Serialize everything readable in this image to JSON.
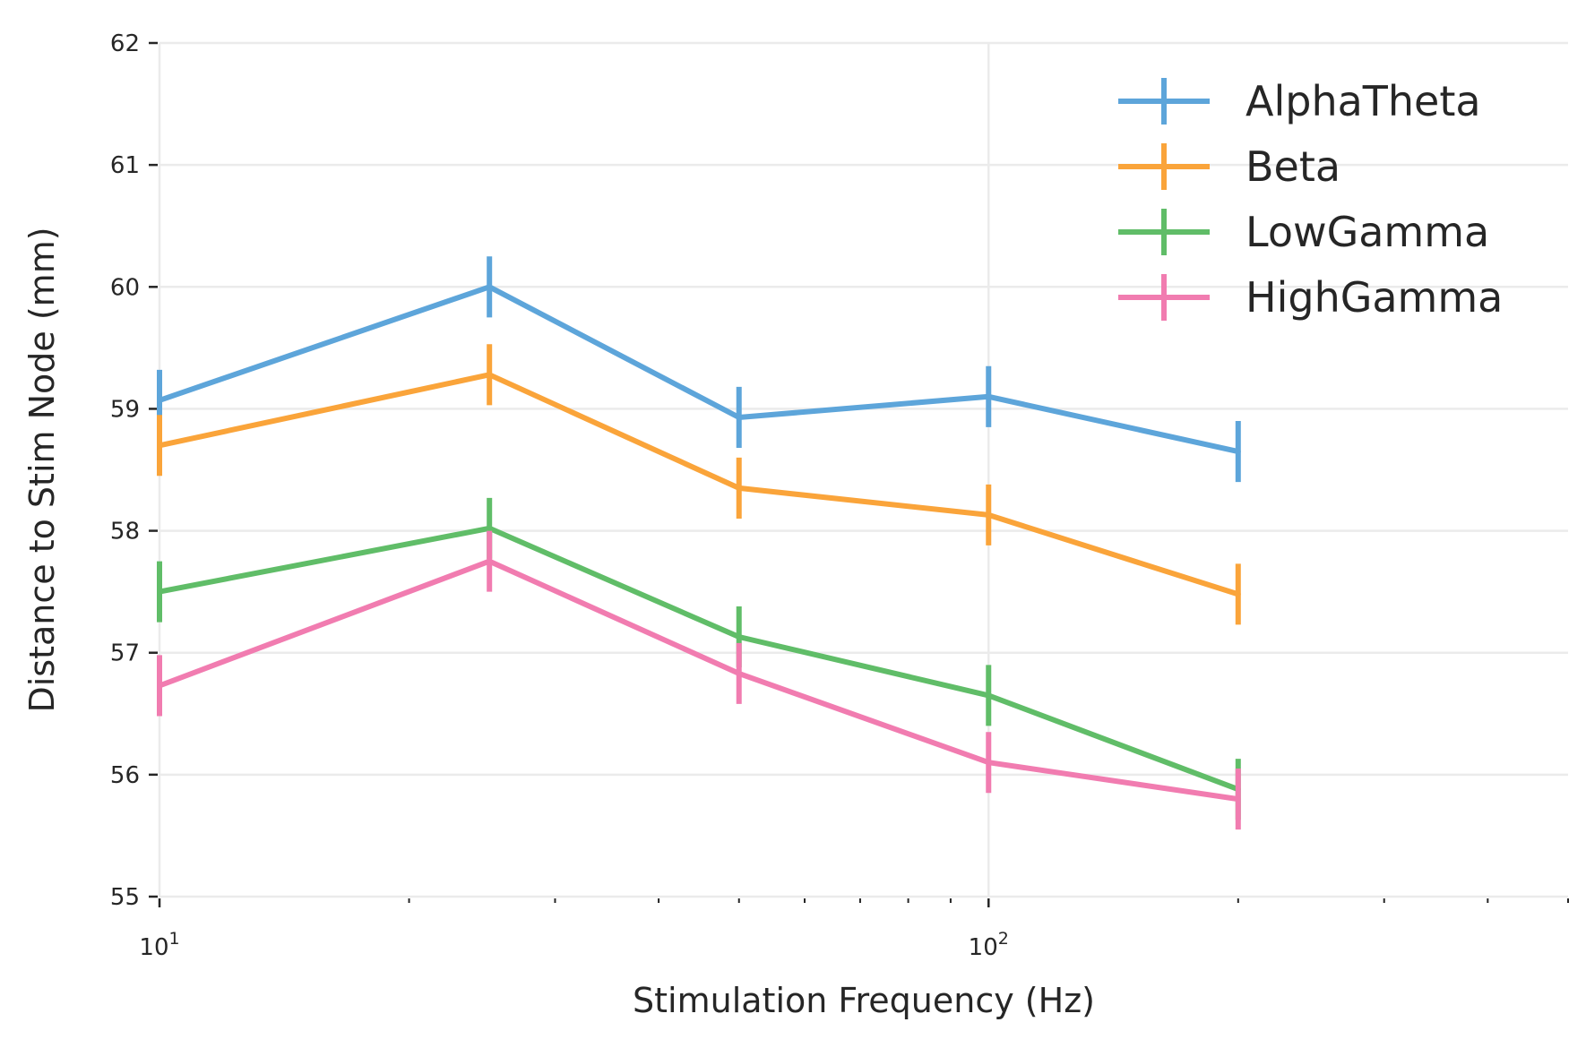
{
  "chart_data": {
    "type": "line",
    "xlabel": "Stimulation Frequency (Hz)",
    "ylabel": "Distance to Stim Node (mm)",
    "xscale": "log",
    "xlim": [
      10,
      500
    ],
    "ylim": [
      55,
      62
    ],
    "x_ticks": [
      {
        "value": 10,
        "base": "10",
        "exp": "1"
      },
      {
        "value": 100,
        "base": "10",
        "exp": "2"
      }
    ],
    "y_ticks": [
      "55",
      "56",
      "57",
      "58",
      "59",
      "60",
      "61",
      "62"
    ],
    "grid": true,
    "legend_position": "top-right",
    "x": [
      10,
      25,
      50,
      100,
      200
    ],
    "series": [
      {
        "name": "AlphaTheta",
        "color": "#5da5da",
        "values": [
          59.07,
          60.0,
          58.93,
          59.1,
          58.65
        ],
        "errors": [
          0.25,
          0.25,
          0.25,
          0.25,
          0.25
        ]
      },
      {
        "name": "Beta",
        "color": "#faa43a",
        "values": [
          58.7,
          59.28,
          58.35,
          58.13,
          57.48
        ],
        "errors": [
          0.25,
          0.25,
          0.25,
          0.25,
          0.25
        ]
      },
      {
        "name": "LowGamma",
        "color": "#60bd68",
        "values": [
          57.5,
          58.02,
          57.13,
          56.65,
          55.88
        ],
        "errors": [
          0.25,
          0.25,
          0.25,
          0.25,
          0.25
        ]
      },
      {
        "name": "HighGamma",
        "color": "#f17cb0",
        "values": [
          56.73,
          57.75,
          56.83,
          56.1,
          55.8
        ],
        "errors": [
          0.25,
          0.25,
          0.25,
          0.25,
          0.25
        ]
      }
    ]
  }
}
